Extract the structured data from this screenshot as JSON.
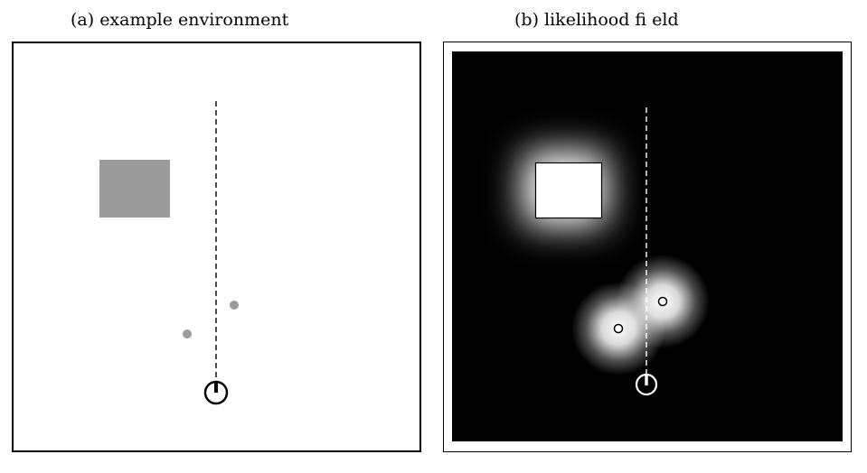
{
  "captions": {
    "a": "(a) example environment",
    "b": "(b) likelihood fi eld"
  },
  "colors": {
    "obstacle": "#9b9b9b",
    "background_a": "#ffffff",
    "background_b": "#000000",
    "field_glow": "#ffffff"
  },
  "icons": {
    "robot": "robot-circle-icon",
    "beam": "laser-beam-line"
  }
}
